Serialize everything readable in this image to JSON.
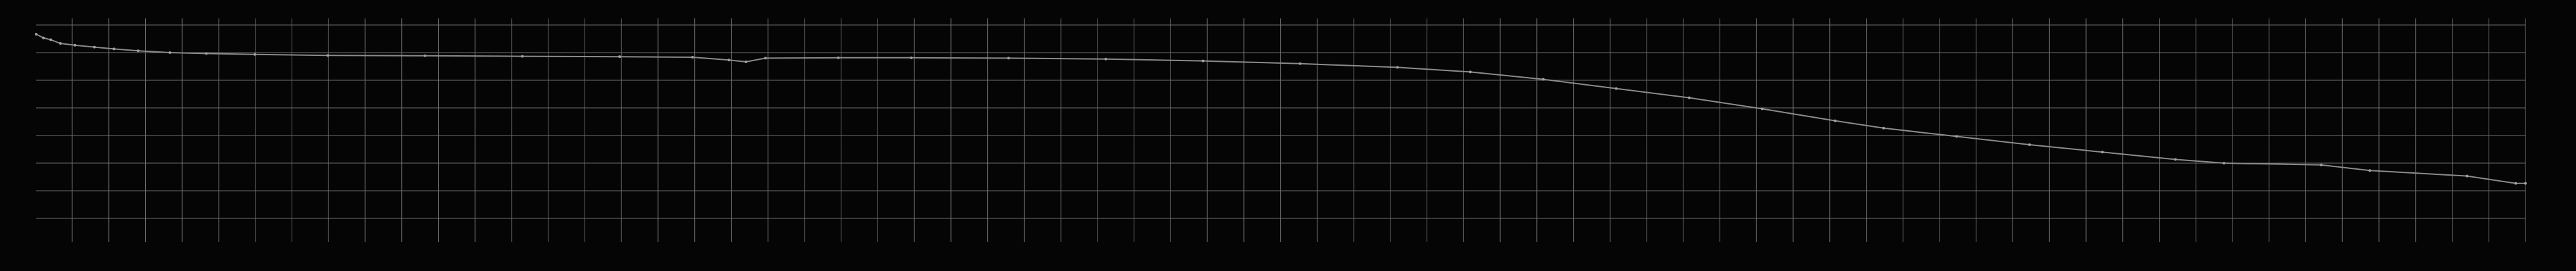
{
  "chart_data": {
    "type": "line",
    "title": "",
    "xlabel": "",
    "ylabel": "",
    "grid": true,
    "legend": "none",
    "xlim": [
      0,
      1024
    ],
    "ylim": [
      0,
      100
    ],
    "vertical_gridlines": 68,
    "horizontal_gridlines": 8,
    "colors": {
      "background": "#050505",
      "grid": "#6e6e6e",
      "line": "#8c8c8c"
    },
    "series": [
      {
        "values": [
          [
            0,
            100
          ],
          [
            3,
            98
          ],
          [
            6,
            97
          ],
          [
            10,
            95
          ],
          [
            16,
            94
          ],
          [
            24,
            93
          ],
          [
            32,
            92
          ],
          [
            42,
            91
          ],
          [
            55,
            90
          ],
          [
            70,
            89.5
          ],
          [
            90,
            89
          ],
          [
            120,
            88.5
          ],
          [
            160,
            88.3
          ],
          [
            200,
            88
          ],
          [
            240,
            87.8
          ],
          [
            270,
            87.5
          ],
          [
            285,
            86
          ],
          [
            292,
            85
          ],
          [
            300,
            87
          ],
          [
            330,
            87.2
          ],
          [
            360,
            87.2
          ],
          [
            400,
            87
          ],
          [
            440,
            86.5
          ],
          [
            480,
            85.5
          ],
          [
            520,
            84
          ],
          [
            560,
            82
          ],
          [
            590,
            79.5
          ],
          [
            620,
            75.5
          ],
          [
            650,
            70.5
          ],
          [
            680,
            65.5
          ],
          [
            710,
            59.5
          ],
          [
            740,
            53
          ],
          [
            760,
            49
          ],
          [
            790,
            44.5
          ],
          [
            820,
            40
          ],
          [
            850,
            36
          ],
          [
            880,
            32
          ],
          [
            900,
            30
          ],
          [
            940,
            29
          ],
          [
            960,
            26
          ],
          [
            1000,
            23
          ],
          [
            1020,
            19
          ],
          [
            1024,
            19
          ]
        ]
      }
    ]
  }
}
